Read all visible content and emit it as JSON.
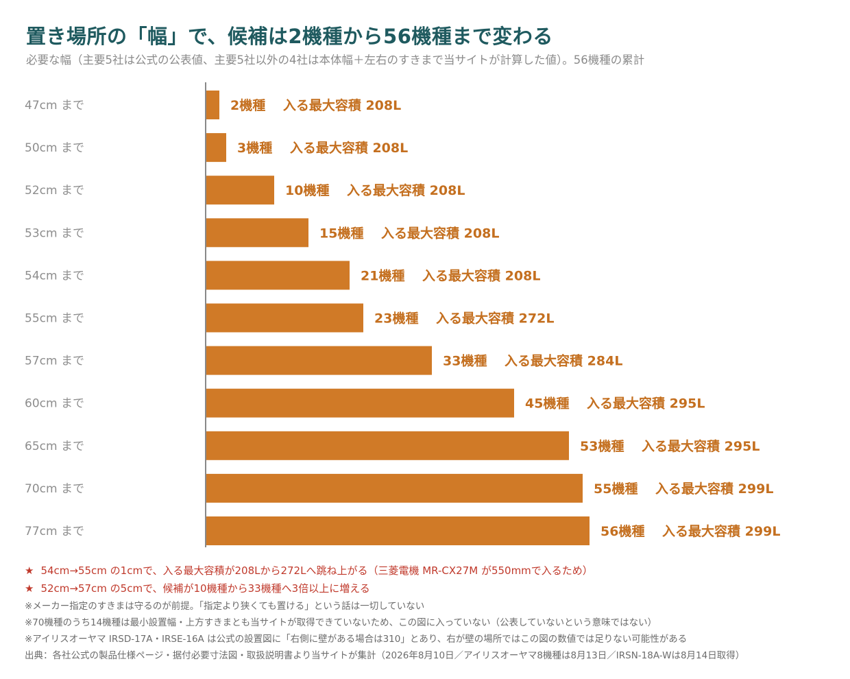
{
  "header": {
    "title": "置き場所の「幅」で、候補は2機種から56機種まで変わる",
    "subtitle": "必要な幅（主要5社は公式の公表値、主要5社以外の4社は本体幅＋左右のすきまで当サイトが計算した値）。56機種の累計"
  },
  "colors": {
    "bar": "#d07a27",
    "label": "#c46f1f",
    "axis": "#888888",
    "category_text": "#8d8d8d",
    "title": "#1f5a5f",
    "star": "#c0392b"
  },
  "chart_data": {
    "type": "bar",
    "orientation": "horizontal",
    "title": "置き場所の「幅」で、候補は2機種から56機種まで変わる",
    "subtitle": "必要な幅（主要5社は公式の公表値、主要5社以外の4社は本体幅＋左右のすきまで当サイトが計算した値）。56機種の累計",
    "xlabel": "",
    "ylabel": "",
    "xlim": [
      0,
      56
    ],
    "grid": false,
    "legend": "none",
    "categories": [
      "47cm まで",
      "50cm まで",
      "52cm まで",
      "53cm まで",
      "54cm まで",
      "55cm まで",
      "57cm まで",
      "60cm まで",
      "65cm まで",
      "70cm まで",
      "77cm まで"
    ],
    "values": [
      2,
      3,
      10,
      15,
      21,
      23,
      33,
      45,
      53,
      55,
      56
    ],
    "max_capacity_l": [
      208,
      208,
      208,
      208,
      208,
      272,
      284,
      295,
      295,
      299,
      299
    ],
    "data_labels": [
      "2機種　 入る最大容積 208L",
      "3機種　 入る最大容積 208L",
      "10機種　 入る最大容積 208L",
      "15機種　 入る最大容積 208L",
      "21機種　 入る最大容積 208L",
      "23機種　 入る最大容積 272L",
      "33機種　 入る最大容積 284L",
      "45機種　 入る最大容積 295L",
      "53機種　 入る最大容積 295L",
      "55機種　 入る最大容積 299L",
      "56機種　 入る最大容積 299L"
    ]
  },
  "notes": {
    "star_symbol": "★",
    "star1": "54cm→55cm の1cmで、入る最大容積が208Lから272Lへ跳ね上がる（三菱電機 MR-CX27M が550mmで入るため）",
    "star2": "52cm→57cm の5cmで、候補が10機種から33機種へ3倍以上に増える",
    "note1": "※メーカー指定のすきまは守るのが前提。「指定より狭くても置ける」という話は一切していない",
    "note2": "※70機種のうち14機種は最小設置幅・上方すきまとも当サイトが取得できていないため、この図に入っていない（公表していないという意味ではない）",
    "note3": "※アイリスオーヤマ IRSD-17A・IRSE-16A は公式の設置図に「右側に壁がある場合は310」とあり、右が壁の場所ではこの図の数値では足りない可能性がある",
    "source": "出典：各社公式の製品仕様ページ・据付必要寸法図・取扱説明書より当サイトが集計（2026年8月10日／アイリスオーヤマ8機種は8月13日／IRSN-18A-Wは8月14日取得）"
  }
}
